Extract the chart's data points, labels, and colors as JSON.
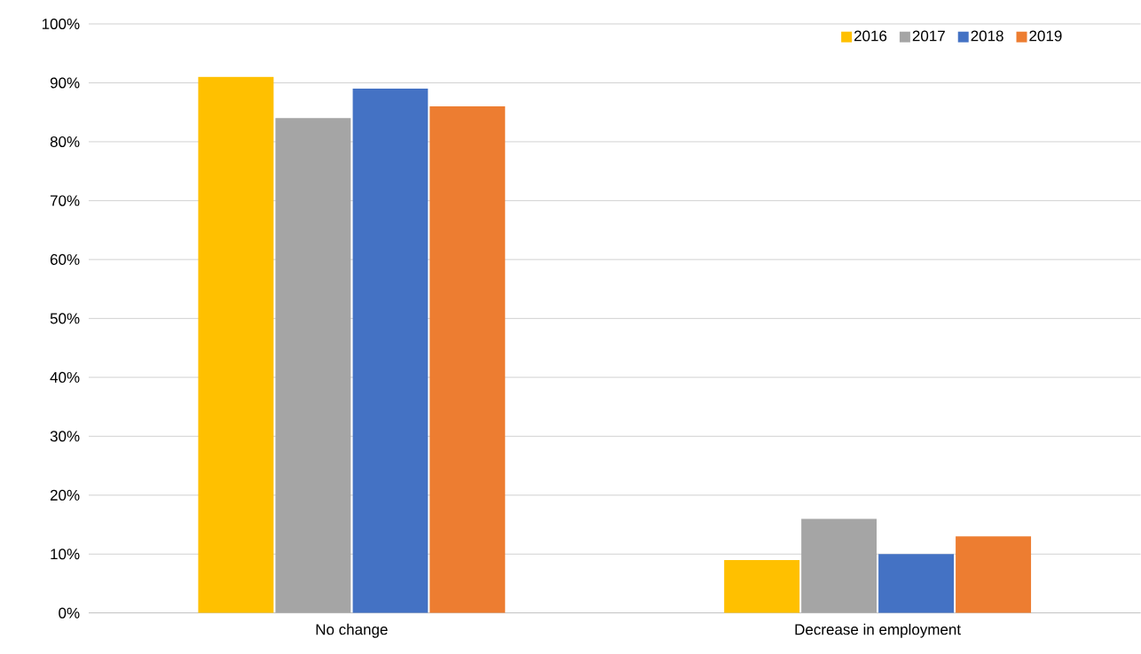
{
  "chart_data": {
    "type": "bar",
    "categories": [
      "No change",
      "Decrease in employment"
    ],
    "series": [
      {
        "name": "2016",
        "color": "#ffc000",
        "values": [
          91,
          9
        ]
      },
      {
        "name": "2017",
        "color": "#a5a5a5",
        "values": [
          84,
          16
        ]
      },
      {
        "name": "2018",
        "color": "#4472c4",
        "values": [
          89,
          10
        ]
      },
      {
        "name": "2019",
        "color": "#ed7d31",
        "values": [
          86,
          13
        ]
      }
    ],
    "ylim": [
      0,
      100
    ],
    "yticks": [
      {
        "value": 0,
        "label": "0%"
      },
      {
        "value": 10,
        "label": "10%"
      },
      {
        "value": 20,
        "label": "20%"
      },
      {
        "value": 30,
        "label": "30%"
      },
      {
        "value": 40,
        "label": "40%"
      },
      {
        "value": 50,
        "label": "50%"
      },
      {
        "value": 60,
        "label": "60%"
      },
      {
        "value": 70,
        "label": "70%"
      },
      {
        "value": 80,
        "label": "80%"
      },
      {
        "value": 90,
        "label": "90%"
      },
      {
        "value": 100,
        "label": "100%"
      }
    ],
    "grid": "y",
    "legend": "top right"
  }
}
